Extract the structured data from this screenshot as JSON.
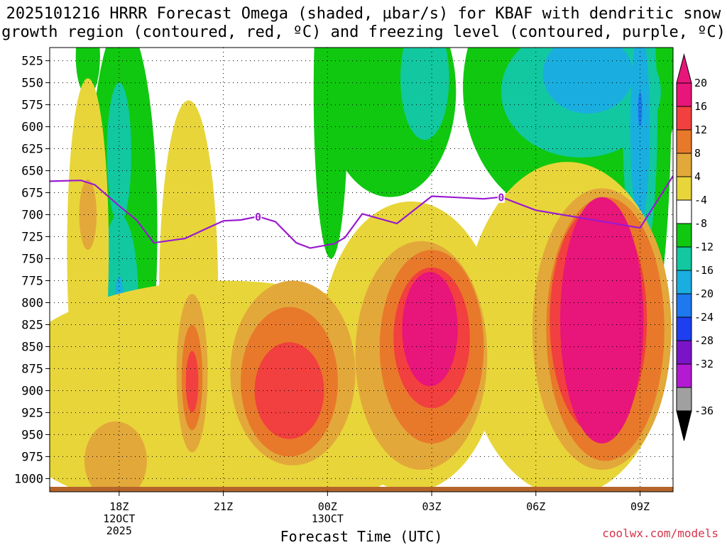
{
  "chart_data": {
    "type": "heatmap",
    "title_line1": "2025101216 HRRR Forecast Omega (shaded, µbar/s) for KBAF with dendritic snow",
    "title_line2": "growth region (contoured, red, ºC) and freezing level (contoured, purple, ºC)",
    "xlabel": "Forecast Time (UTC)",
    "credit": "coolwx.com/models",
    "x_ticks": [
      {
        "h": 18,
        "label": [
          "18Z",
          "12OCT",
          "2025"
        ]
      },
      {
        "h": 21,
        "label": [
          "21Z"
        ]
      },
      {
        "h": 24,
        "label": [
          "00Z",
          "13OCT"
        ]
      },
      {
        "h": 27,
        "label": [
          "03Z"
        ]
      },
      {
        "h": 30,
        "label": [
          "06Z"
        ]
      },
      {
        "h": 33,
        "label": [
          "09Z"
        ]
      }
    ],
    "x_range": [
      16.0,
      33.95
    ],
    "y_ticks": [
      525,
      550,
      575,
      600,
      625,
      650,
      675,
      700,
      725,
      750,
      775,
      800,
      825,
      850,
      875,
      900,
      925,
      950,
      975,
      1000
    ],
    "y_range_hpa": [
      510,
      1015
    ],
    "colorbar": {
      "labels": [
        "20",
        "16",
        "12",
        "8",
        "4",
        "-4",
        "-8",
        "-12",
        "-16",
        "-20",
        "-24",
        "-28",
        "-32",
        "-36"
      ],
      "colors": [
        "#e8157a",
        "#f23f3f",
        "#e8792a",
        "#e3a83a",
        "#e8d53a",
        "#ffffff",
        "#10c810",
        "#12c8a0",
        "#1aaee0",
        "#1e78ee",
        "#1e3ff0",
        "#7a14c8",
        "#b41ad2",
        "#a0a0a0"
      ],
      "top_arrow_color": "#e8157a",
      "bottom_arrow_color": "#000000"
    },
    "freezing_level": {
      "label": "0",
      "color": "#9a1ad0",
      "points": [
        [
          16.0,
          662
        ],
        [
          16.9,
          661
        ],
        [
          17.3,
          666
        ],
        [
          18.0,
          690
        ],
        [
          18.5,
          706
        ],
        [
          19.0,
          732
        ],
        [
          19.9,
          727
        ],
        [
          20.5,
          716
        ],
        [
          21.0,
          707
        ],
        [
          21.5,
          706
        ],
        [
          22.0,
          702
        ],
        [
          22.5,
          708
        ],
        [
          23.1,
          732
        ],
        [
          23.5,
          738
        ],
        [
          24.2,
          733
        ],
        [
          24.5,
          726
        ],
        [
          25.0,
          699
        ],
        [
          26.0,
          710
        ],
        [
          27.0,
          679
        ],
        [
          27.5,
          680
        ],
        [
          28.5,
          682
        ],
        [
          29.0,
          680
        ],
        [
          30.0,
          695
        ],
        [
          31.5,
          705
        ],
        [
          33.0,
          715
        ],
        [
          33.95,
          656
        ]
      ],
      "label_positions": [
        [
          22.0,
          702
        ],
        [
          29.0,
          680
        ]
      ]
    },
    "omega_regions": [
      {
        "name": "upper-green-a",
        "value": -6,
        "h": 25.8,
        "p": 560,
        "rh": 1.9,
        "rp": 120
      },
      {
        "name": "upper-green-b",
        "value": -6,
        "h": 24.1,
        "p": 560,
        "rh": 0.5,
        "rp": 190
      },
      {
        "name": "upper-green-c",
        "value": -6,
        "h": 31.0,
        "p": 555,
        "rh": 3.1,
        "rp": 150
      },
      {
        "name": "upper-green-d",
        "value": -6,
        "h": 33.0,
        "p": 570,
        "rh": 0.9,
        "rp": 290
      },
      {
        "name": "upper-green-e",
        "value": -6,
        "h": 17.1,
        "p": 520,
        "rh": 0.35,
        "rp": 45
      },
      {
        "name": "upper-teal-a",
        "value": -10,
        "h": 26.8,
        "p": 545,
        "rh": 0.7,
        "rp": 70
      },
      {
        "name": "upper-teal-b",
        "value": -10,
        "h": 31.3,
        "p": 560,
        "rh": 2.3,
        "rp": 75
      },
      {
        "name": "upper-teal-c",
        "value": -10,
        "h": 33.0,
        "p": 590,
        "rh": 0.5,
        "rp": 170
      },
      {
        "name": "upper-blue-a",
        "value": -14,
        "h": 31.5,
        "p": 540,
        "rh": 1.3,
        "rp": 45
      },
      {
        "name": "upper-blue-b",
        "value": -14,
        "h": 33.0,
        "p": 600,
        "rh": 0.28,
        "rp": 110
      },
      {
        "name": "upper-deepblue",
        "value": -18,
        "h": 33.0,
        "p": 580,
        "rh": 0.06,
        "rp": 20
      },
      {
        "name": "lower-green-18z",
        "value": -6,
        "h": 18.1,
        "p": 720,
        "rh": 1.0,
        "rp": 240
      },
      {
        "name": "lower-teal-18z",
        "value": -10,
        "h": 18.0,
        "p": 795,
        "rh": 0.55,
        "rp": 95
      },
      {
        "name": "upper-teal-18z",
        "value": -10,
        "h": 18.0,
        "p": 630,
        "rh": 0.35,
        "rp": 80
      },
      {
        "name": "blue-18z",
        "value": -14,
        "h": 18.0,
        "p": 795,
        "rh": 0.12,
        "rp": 25
      },
      {
        "name": "yellow-low-a",
        "value": 6,
        "h": 21.0,
        "p": 910,
        "rh": 6.6,
        "rp": 135
      },
      {
        "name": "yellow-low-b",
        "value": 6,
        "h": 17.1,
        "p": 740,
        "rh": 0.6,
        "rp": 195
      },
      {
        "name": "yellow-low-c",
        "value": 6,
        "h": 20.0,
        "p": 790,
        "rh": 0.85,
        "rp": 220
      },
      {
        "name": "yellow-low-d",
        "value": 6,
        "h": 30.9,
        "p": 830,
        "rh": 3.0,
        "rp": 190
      },
      {
        "name": "yellow-low-e",
        "value": 6,
        "h": 26.4,
        "p": 850,
        "rh": 2.6,
        "rp": 165
      },
      {
        "name": "orange-low-a",
        "value": 10,
        "h": 23.0,
        "p": 880,
        "rh": 1.8,
        "rp": 105
      },
      {
        "name": "orange-low-b",
        "value": 10,
        "h": 26.7,
        "p": 860,
        "rh": 1.9,
        "rp": 130
      },
      {
        "name": "orange-low-c",
        "value": 10,
        "h": 31.9,
        "p": 830,
        "rh": 2.0,
        "rp": 160
      },
      {
        "name": "orange-low-d",
        "value": 10,
        "h": 20.1,
        "p": 880,
        "rh": 0.45,
        "rp": 90
      },
      {
        "name": "orange-low-e",
        "value": 10,
        "h": 17.9,
        "p": 980,
        "rh": 0.9,
        "rp": 45
      },
      {
        "name": "orange-low-f",
        "value": 10,
        "h": 17.1,
        "p": 700,
        "rh": 0.25,
        "rp": 40
      },
      {
        "name": "dkorange-a",
        "value": 14,
        "h": 22.9,
        "p": 890,
        "rh": 1.4,
        "rp": 85
      },
      {
        "name": "dkorange-b",
        "value": 14,
        "h": 27.0,
        "p": 850,
        "rh": 1.5,
        "rp": 110
      },
      {
        "name": "dkorange-c",
        "value": 14,
        "h": 32.0,
        "p": 830,
        "rh": 1.7,
        "rp": 150
      },
      {
        "name": "dkorange-d",
        "value": 14,
        "h": 20.1,
        "p": 885,
        "rh": 0.3,
        "rp": 60
      },
      {
        "name": "red-a",
        "value": 18,
        "h": 22.9,
        "p": 900,
        "rh": 1.0,
        "rp": 55
      },
      {
        "name": "red-b",
        "value": 18,
        "h": 27.0,
        "p": 840,
        "rh": 1.1,
        "rp": 80
      },
      {
        "name": "red-c",
        "value": 18,
        "h": 31.8,
        "p": 820,
        "rh": 1.4,
        "rp": 130
      },
      {
        "name": "red-d",
        "value": 18,
        "h": 20.1,
        "p": 890,
        "rh": 0.18,
        "rp": 35
      },
      {
        "name": "magenta-a",
        "value": 22,
        "h": 26.95,
        "p": 830,
        "rh": 0.8,
        "rp": 65
      },
      {
        "name": "magenta-b",
        "value": 22,
        "h": 31.9,
        "p": 820,
        "rh": 1.2,
        "rp": 140
      }
    ]
  }
}
